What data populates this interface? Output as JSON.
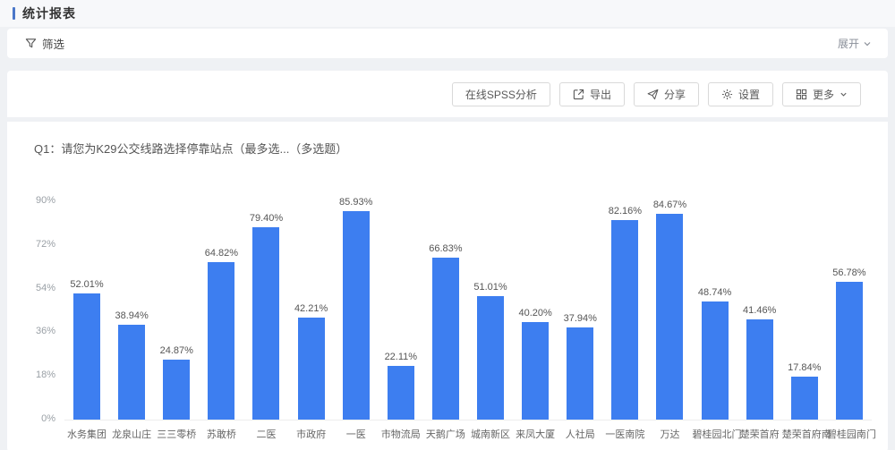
{
  "page": {
    "title": "统计报表"
  },
  "filter_bar": {
    "label": "筛选",
    "expand_label": "展开"
  },
  "toolbar": {
    "buttons": [
      {
        "label": "在线SPSS分析",
        "icon": "none"
      },
      {
        "label": "导出",
        "icon": "export-icon"
      },
      {
        "label": "分享",
        "icon": "share-icon"
      },
      {
        "label": "设置",
        "icon": "gear-icon"
      },
      {
        "label": "更多",
        "icon": "grid-icon",
        "chevron": "∨"
      }
    ]
  },
  "question": {
    "label": "Q1：请您为K29公交线路选择停靠站点（最多选...（多选题）"
  },
  "chart_data": {
    "type": "bar",
    "title": "",
    "xlabel": "",
    "ylabel": "",
    "grid": false,
    "legend": "none",
    "bar_color": "#3d7ef0",
    "ylim": [
      0,
      90
    ],
    "yticks": [
      0,
      18,
      36,
      54,
      72,
      90
    ],
    "ytick_labels": [
      "0%",
      "18%",
      "36%",
      "54%",
      "72%",
      "90%"
    ],
    "categories": [
      "水务集团",
      "龙泉山庄",
      "三三零桥",
      "苏敢桥",
      "二医",
      "市政府",
      "一医",
      "市物流局",
      "天鹅广场",
      "城南新区",
      "来凤大厦",
      "人社局",
      "一医南院",
      "万达",
      "碧桂园北门",
      "楚荣首府",
      "楚荣首府南",
      "碧桂园南门"
    ],
    "values": [
      52.01,
      38.94,
      24.87,
      64.82,
      79.4,
      42.21,
      85.93,
      22.11,
      66.83,
      51.01,
      40.2,
      37.94,
      82.16,
      84.67,
      48.74,
      41.46,
      17.84,
      56.78
    ],
    "value_labels": [
      "52.01%",
      "38.94%",
      "24.87%",
      "64.82%",
      "79.40%",
      "42.21%",
      "85.93%",
      "22.11%",
      "66.83%",
      "51.01%",
      "40.20%",
      "37.94%",
      "82.16%",
      "84.67%",
      "48.74%",
      "41.46%",
      "17.84%",
      "56.78%"
    ]
  },
  "colors": {
    "accent": "#3d7ef0",
    "bar": "#3d7ef0",
    "page_bg": "#eff1f4"
  }
}
